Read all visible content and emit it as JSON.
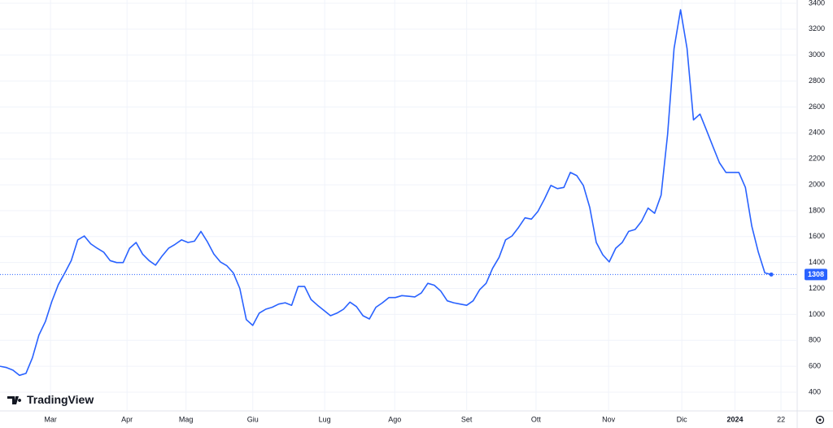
{
  "chart_data": {
    "type": "line",
    "watermark": "TradingView",
    "color": "#2962ff",
    "grid": true,
    "xlim": [
      0,
      123
    ],
    "xticks": [
      {
        "value": 7.8,
        "label": "Mar"
      },
      {
        "value": 19.6,
        "label": "Apr"
      },
      {
        "value": 28.7,
        "label": "Mag"
      },
      {
        "value": 39,
        "label": "Giu"
      },
      {
        "value": 50.1,
        "label": "Lug"
      },
      {
        "value": 60.9,
        "label": "Ago"
      },
      {
        "value": 72,
        "label": "Set"
      },
      {
        "value": 82.7,
        "label": "Ott"
      },
      {
        "value": 93.9,
        "label": "Nov"
      },
      {
        "value": 105.2,
        "label": "Dic"
      },
      {
        "value": 113.4,
        "label": "2024",
        "bold": true
      },
      {
        "value": 120.5,
        "label": "22"
      }
    ],
    "ylim": [
      400,
      3400
    ],
    "yticks": [
      400,
      600,
      800,
      1000,
      1200,
      1400,
      1600,
      1800,
      2000,
      2200,
      2400,
      2600,
      2800,
      3000,
      3200,
      3400
    ],
    "values": [
      600,
      590,
      570,
      530,
      545,
      665,
      840,
      945,
      1100,
      1230,
      1320,
      1415,
      1575,
      1605,
      1545,
      1510,
      1480,
      1415,
      1400,
      1400,
      1510,
      1555,
      1465,
      1415,
      1380,
      1450,
      1510,
      1540,
      1575,
      1555,
      1565,
      1640,
      1560,
      1465,
      1405,
      1375,
      1320,
      1200,
      960,
      915,
      1010,
      1040,
      1055,
      1080,
      1090,
      1070,
      1215,
      1215,
      1115,
      1070,
      1030,
      990,
      1010,
      1040,
      1095,
      1060,
      990,
      965,
      1055,
      1090,
      1130,
      1130,
      1145,
      1140,
      1135,
      1165,
      1240,
      1225,
      1180,
      1105,
      1090,
      1080,
      1070,
      1105,
      1190,
      1240,
      1355,
      1440,
      1575,
      1605,
      1670,
      1745,
      1735,
      1795,
      1890,
      1995,
      1970,
      1980,
      2095,
      2070,
      1995,
      1825,
      1555,
      1460,
      1405,
      1510,
      1555,
      1640,
      1655,
      1720,
      1820,
      1780,
      1920,
      2390,
      3050,
      3350,
      3050,
      2500,
      2545,
      2420,
      2295,
      2170,
      2095,
      2095,
      2095,
      1980,
      1680,
      1480,
      1320,
      1308
    ]
  }
}
